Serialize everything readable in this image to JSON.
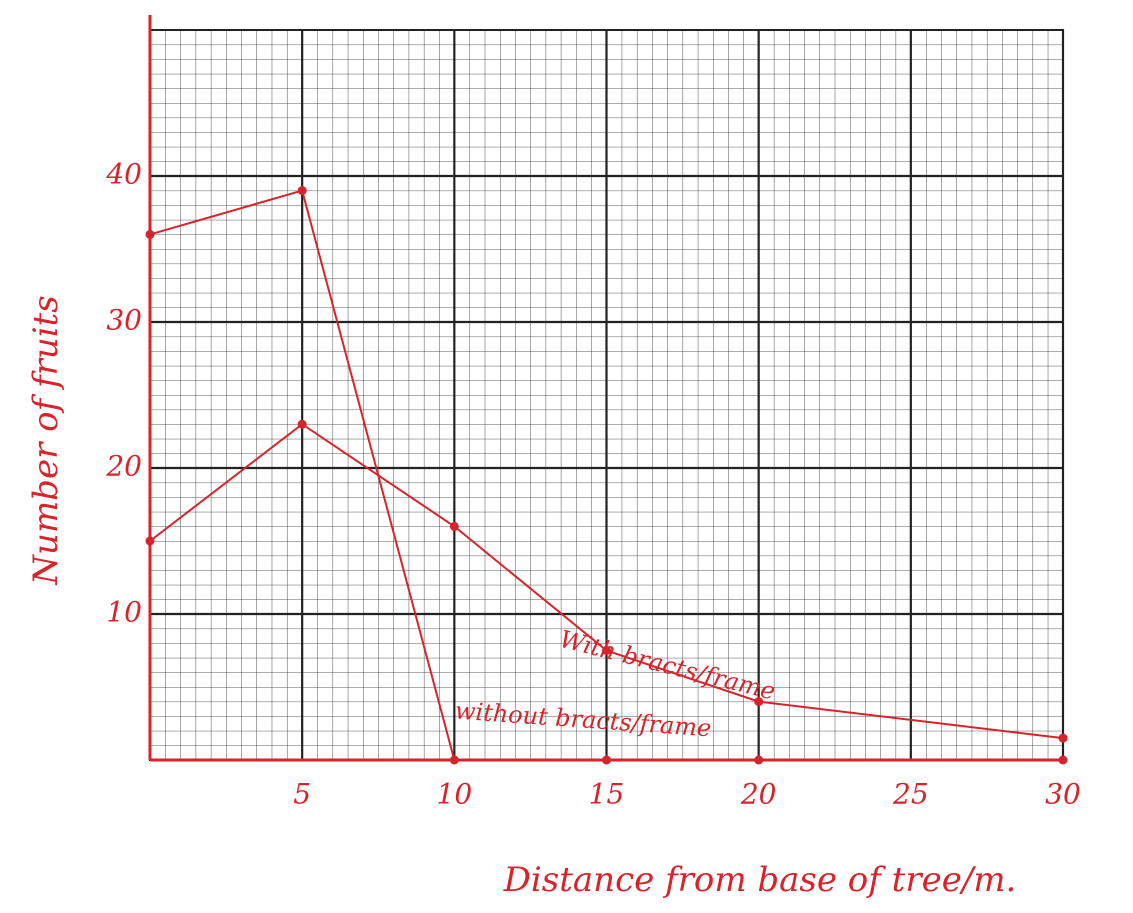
{
  "chart_data": {
    "type": "line",
    "x_label": "Distance from base of tree/m.",
    "y_label": "Number of fruits",
    "x": [
      0,
      5,
      10,
      15,
      20,
      30
    ],
    "series": [
      {
        "name": "With bracts/frame",
        "color": "#d8232a",
        "values": [
          15,
          23,
          16,
          7.5,
          4,
          1.5
        ]
      },
      {
        "name": "without bracts/frame",
        "color": "#d8232a",
        "values": [
          36,
          39,
          0,
          0,
          0,
          0
        ]
      }
    ],
    "xlim": [
      0,
      30
    ],
    "xticks": [
      5,
      10,
      15,
      20,
      25,
      30
    ],
    "ylim": [
      0,
      50
    ],
    "yticks": [
      10,
      20,
      30,
      40
    ],
    "grid": true,
    "minor_grid": true,
    "grid_color": "#222222",
    "axis_color": "#d8232a"
  }
}
